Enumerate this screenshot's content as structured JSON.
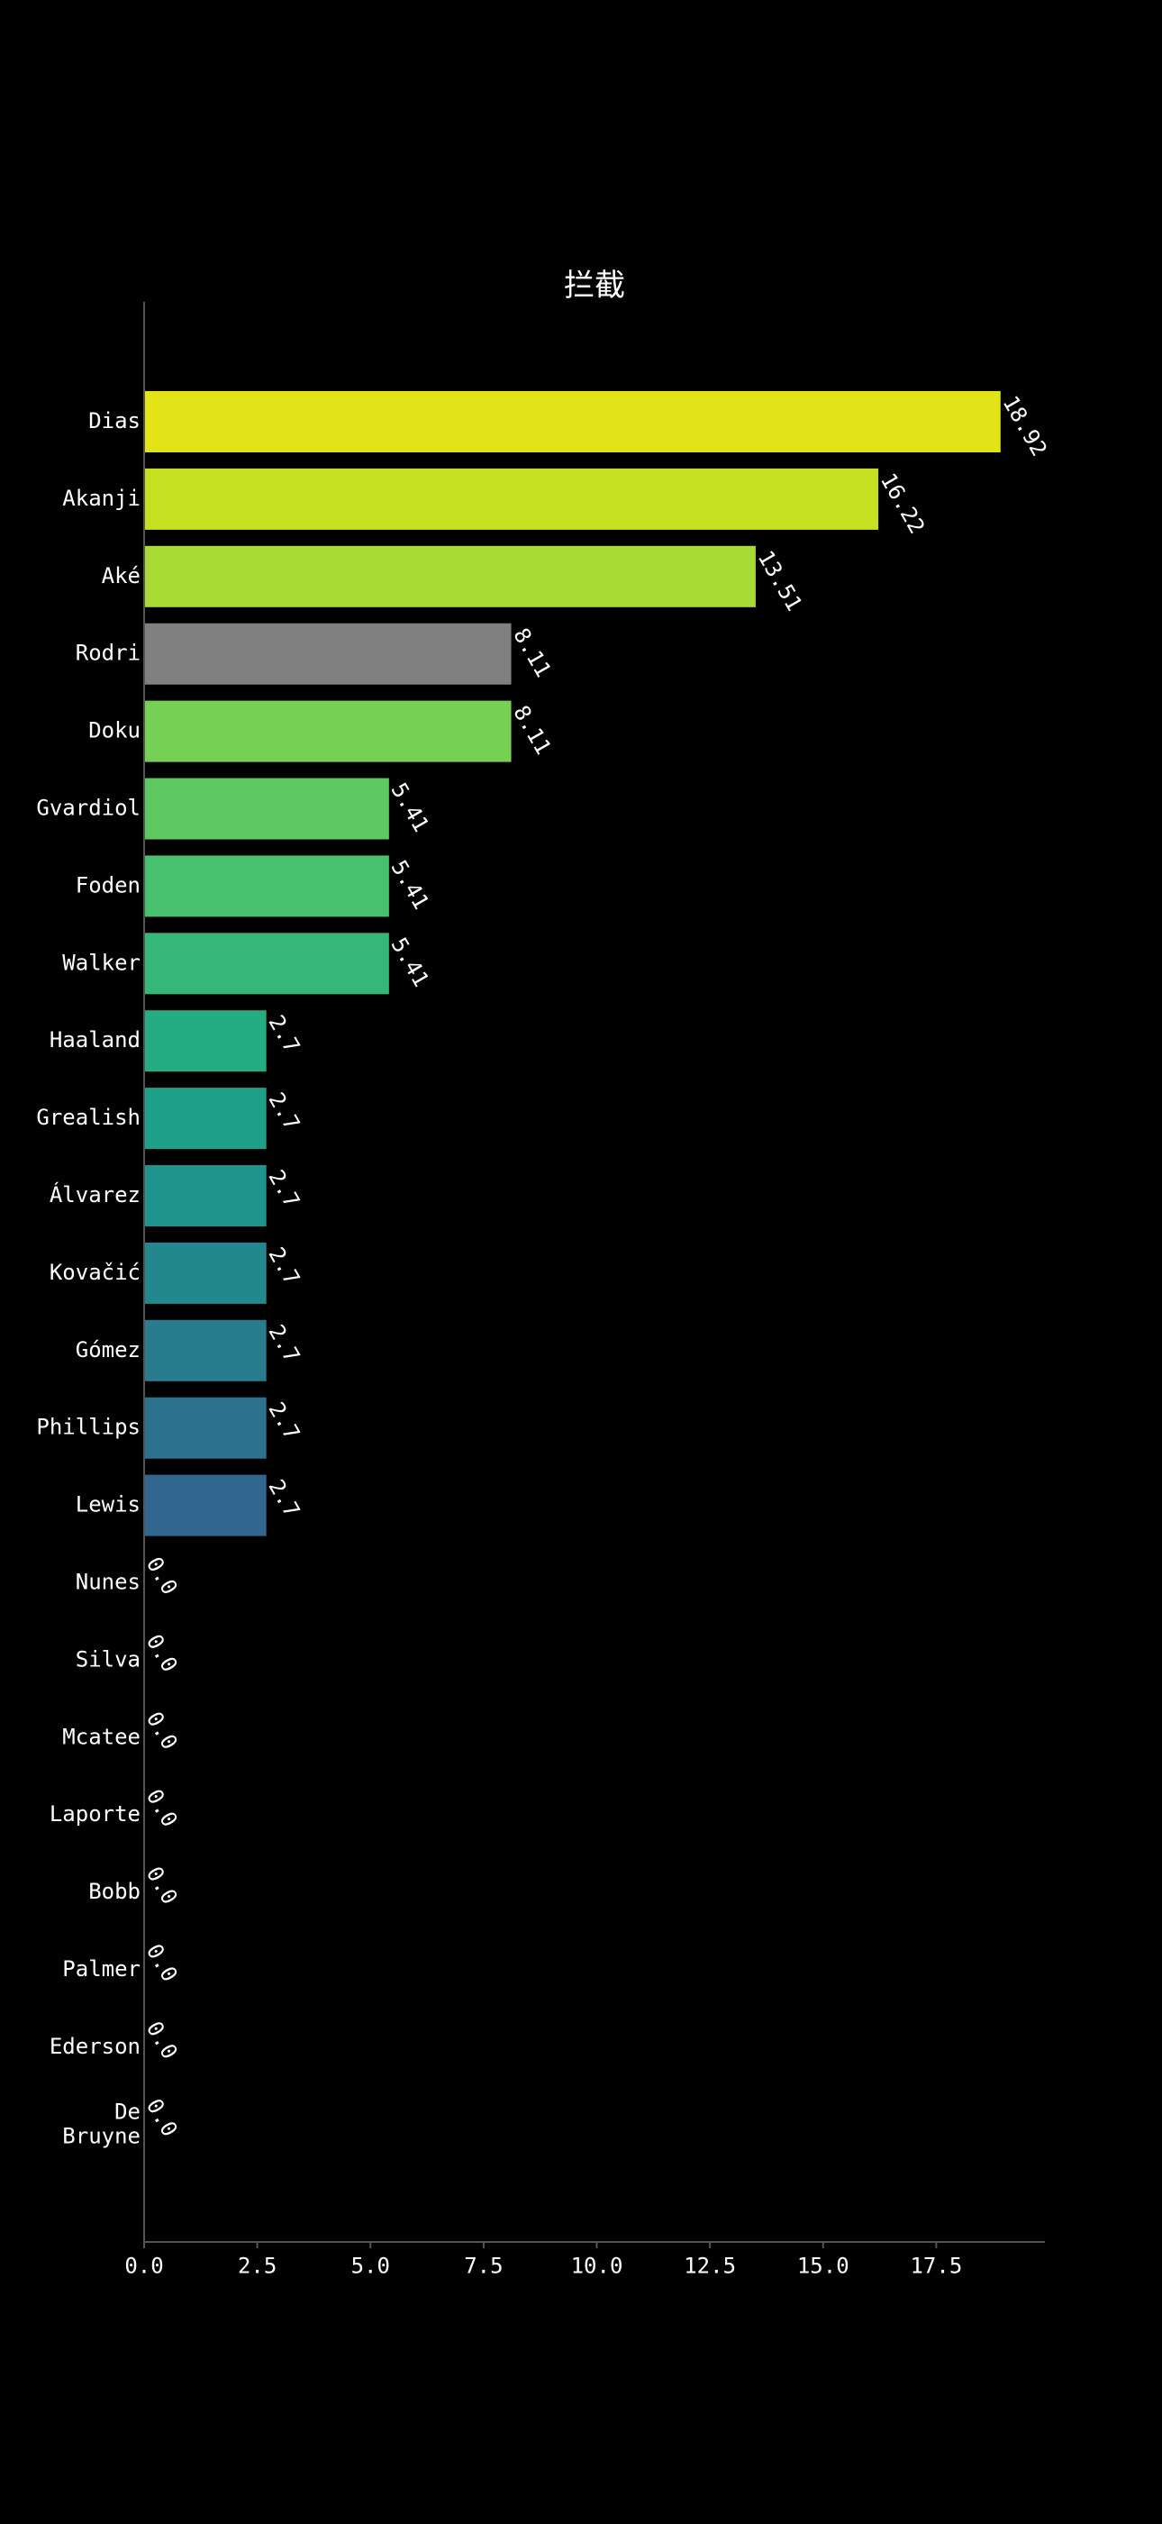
{
  "chart_data": {
    "type": "bar",
    "orientation": "horizontal",
    "title": "拦截",
    "xlabel": "",
    "ylabel": "",
    "xlim": [
      0,
      19.9
    ],
    "xticks": [
      0.0,
      2.5,
      5.0,
      7.5,
      10.0,
      12.5,
      15.0,
      17.5
    ],
    "xtick_labels": [
      "0.0",
      "2.5",
      "5.0",
      "7.5",
      "10.0",
      "12.5",
      "15.0",
      "17.5"
    ],
    "grid": false,
    "legend": "none",
    "categories": [
      "Dias",
      "Akanji",
      "Aké",
      "Rodri",
      "Doku",
      "Gvardiol",
      "Foden",
      "Walker",
      "Haaland",
      "Grealish",
      "Álvarez",
      "Kovačić",
      "Gómez",
      "Phillips",
      "Lewis",
      "Nunes",
      "Silva",
      "Mcatee",
      "Laporte",
      "Bobb",
      "Palmer",
      "Ederson",
      "De Bruyne"
    ],
    "category_display": [
      [
        "Dias"
      ],
      [
        "Akanji"
      ],
      [
        "Aké"
      ],
      [
        "Rodri"
      ],
      [
        "Doku"
      ],
      [
        "Gvardiol"
      ],
      [
        "Foden"
      ],
      [
        "Walker"
      ],
      [
        "Haaland"
      ],
      [
        "Grealish"
      ],
      [
        "Álvarez"
      ],
      [
        "Kovačić"
      ],
      [
        "Gómez"
      ],
      [
        "Phillips"
      ],
      [
        "Lewis"
      ],
      [
        "Nunes"
      ],
      [
        "Silva"
      ],
      [
        "Mcatee"
      ],
      [
        "Laporte"
      ],
      [
        "Bobb"
      ],
      [
        "Palmer"
      ],
      [
        "Ederson"
      ],
      [
        "De",
        "Bruyne"
      ]
    ],
    "values": [
      18.92,
      16.22,
      13.51,
      8.11,
      8.11,
      5.41,
      5.41,
      5.41,
      2.7,
      2.7,
      2.7,
      2.7,
      2.7,
      2.7,
      2.7,
      0.0,
      0.0,
      0.0,
      0.0,
      0.0,
      0.0,
      0.0,
      0.0
    ],
    "value_labels": [
      "18.92",
      "16.22",
      "13.51",
      "8.11",
      "8.11",
      "5.41",
      "5.41",
      "5.41",
      "2.7",
      "2.7",
      "2.7",
      "2.7",
      "2.7",
      "2.7",
      "2.7",
      "0.0",
      "0.0",
      "0.0",
      "0.0",
      "0.0",
      "0.0",
      "0.0",
      "0.0"
    ],
    "bar_colors": [
      "#e2e418",
      "#c5e021",
      "#a8db34",
      "#808080",
      "#75d054",
      "#5ec962",
      "#48c16e",
      "#35b779",
      "#25ac82",
      "#1fa088",
      "#20938c",
      "#23888e",
      "#287c8e",
      "#2c718e",
      "#31668e",
      "#3b528b",
      "#3e4989",
      "#433e85",
      "#46327e",
      "#482576",
      "#481769",
      "#470d60",
      "#440154"
    ],
    "axis_color": "#555555",
    "text_color": "#ffffff",
    "background": "#000000"
  }
}
